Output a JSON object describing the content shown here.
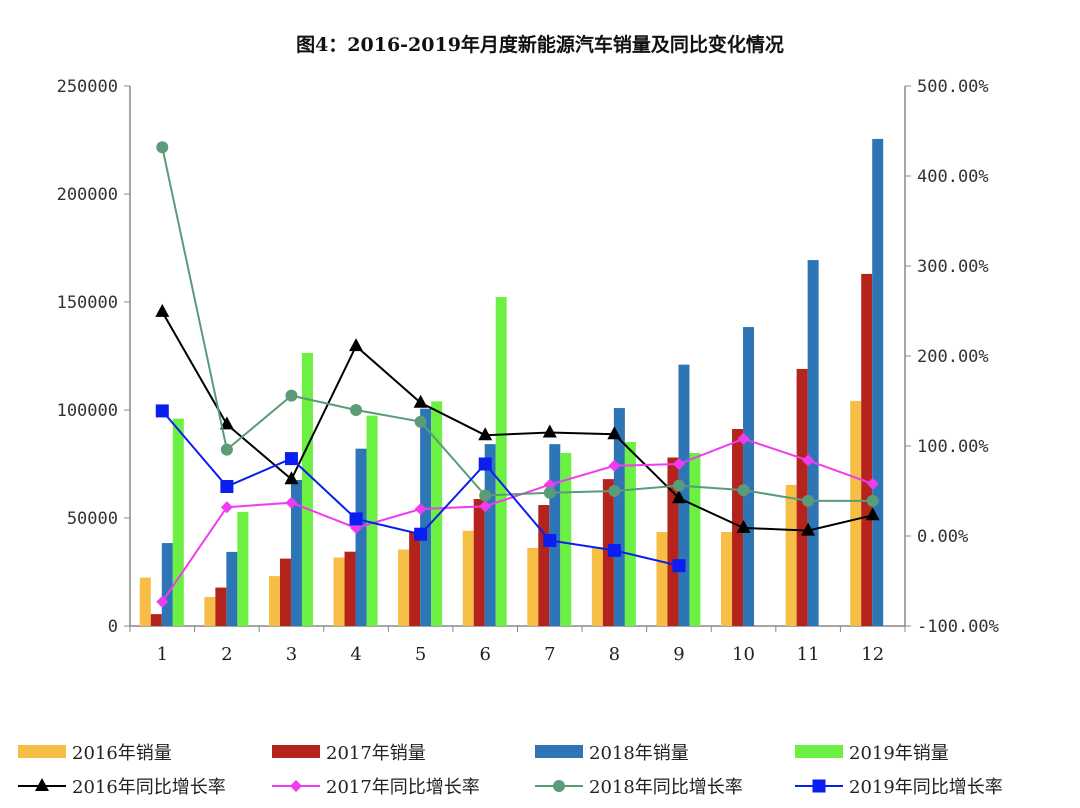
{
  "chart_data": {
    "type": "bar",
    "title": "图4：2016-2019年月度新能源汽车销量及同比变化情况",
    "categories": [
      "1",
      "2",
      "3",
      "4",
      "5",
      "6",
      "7",
      "8",
      "9",
      "10",
      "11",
      "12"
    ],
    "y_left": {
      "range": [
        0,
        250000
      ],
      "ticks": [
        "0",
        "50000",
        "100000",
        "150000",
        "200000",
        "250000"
      ]
    },
    "y_right": {
      "range": [
        -100,
        500
      ],
      "unit": "%",
      "ticks": [
        "-100.00%",
        "0.00%",
        "100.00%",
        "200.00%",
        "300.00%",
        "400.00%",
        "500.00%"
      ]
    },
    "grid": false,
    "legend_position": "bottom",
    "bar_series": [
      {
        "name": "2016年销量",
        "color": "#F7BE45",
        "values": [
          22400,
          13400,
          23100,
          31700,
          35400,
          44100,
          36100,
          36500,
          43500,
          43500,
          65300,
          104200
        ]
      },
      {
        "name": "2017年销量",
        "color": "#B5231D",
        "values": [
          5500,
          17800,
          31200,
          34400,
          43600,
          58800,
          56000,
          68000,
          78000,
          91200,
          119000,
          163000
        ]
      },
      {
        "name": "2018年销量",
        "color": "#2E75B6",
        "values": [
          38400,
          34300,
          67600,
          82100,
          100600,
          84200,
          84200,
          100900,
          121000,
          138400,
          169400,
          225500
        ]
      },
      {
        "name": "2019年销量",
        "color": "#6CF044",
        "values": [
          96000,
          52800,
          126400,
          97400,
          104000,
          152300,
          80100,
          85200,
          80100,
          null,
          null,
          null
        ]
      }
    ],
    "line_series": [
      {
        "name": "2016年同比增长率",
        "color": "#000000",
        "marker": "triangle",
        "values": [
          249,
          124,
          63,
          211,
          148,
          112,
          115,
          113,
          42,
          9,
          6,
          23
        ]
      },
      {
        "name": "2017年同比增长率",
        "color": "#F03CF0",
        "marker": "diamond",
        "values": [
          -73,
          32,
          37,
          9,
          30,
          33,
          57,
          78,
          80,
          108,
          84,
          58
        ]
      },
      {
        "name": "2018年同比增长率",
        "color": "#5B9B77",
        "marker": "circle",
        "values": [
          432,
          96,
          156,
          140,
          127,
          45,
          48,
          50,
          56,
          51,
          39,
          39
        ]
      },
      {
        "name": "2019年同比增长率",
        "color": "#0A1EF0",
        "marker": "square",
        "values": [
          139,
          55,
          86,
          19,
          2,
          80,
          -5,
          -16,
          -33,
          null,
          null,
          null
        ]
      }
    ]
  }
}
